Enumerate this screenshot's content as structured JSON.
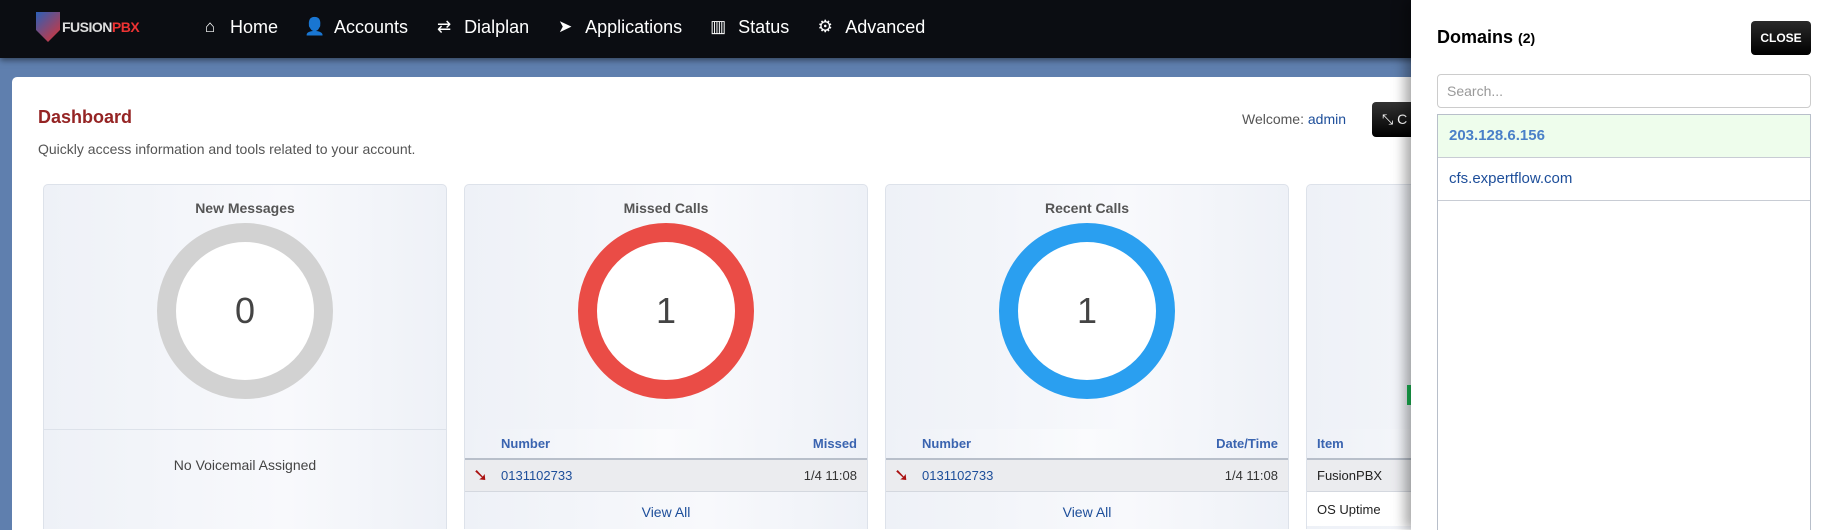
{
  "brand": {
    "logo_text_a": "FUSION",
    "logo_text_b": "PBX"
  },
  "nav": [
    {
      "label": "Home",
      "icon": "home-icon",
      "glyph": "⌂"
    },
    {
      "label": "Accounts",
      "icon": "user-icon",
      "glyph": "👤"
    },
    {
      "label": "Dialplan",
      "icon": "exchange-icon",
      "glyph": "⇄"
    },
    {
      "label": "Applications",
      "icon": "paper-plane-icon",
      "glyph": "➤"
    },
    {
      "label": "Status",
      "icon": "bar-chart-icon",
      "glyph": "▥"
    },
    {
      "label": "Advanced",
      "icon": "gear-icon",
      "glyph": "⚙"
    }
  ],
  "page": {
    "title": "Dashboard",
    "subtitle": "Quickly access information and tools related to your account.",
    "welcome_label": "Welcome:",
    "welcome_user": "admin",
    "button_label": "C"
  },
  "cards": {
    "messages": {
      "title": "New Messages",
      "count": "0",
      "ring_color": "#d2d2d2",
      "note": "No Voicemail Assigned"
    },
    "missed": {
      "title": "Missed Calls",
      "count": "1",
      "ring_color": "#ea4c46",
      "col1": "Number",
      "col2": "Missed",
      "rows": [
        {
          "number": "0131102733",
          "time": "1/4 11:08"
        }
      ],
      "view_all": "View All"
    },
    "recent": {
      "title": "Recent Calls",
      "count": "1",
      "ring_color": "#2a9ff0",
      "col1": "Number",
      "col2": "Date/Time",
      "rows": [
        {
          "number": "0131102733",
          "time": "1/4 11:08"
        }
      ],
      "view_all": "View All"
    },
    "system": {
      "col1": "Item",
      "rows": [
        "FusionPBX",
        "OS Uptime"
      ]
    }
  },
  "domains": {
    "title": "Domains",
    "count": "(2)",
    "close_label": "CLOSE",
    "search_placeholder": "Search...",
    "items": [
      "203.128.6.156",
      "cfs.expertflow.com"
    ],
    "active_color": "#eefdec"
  }
}
